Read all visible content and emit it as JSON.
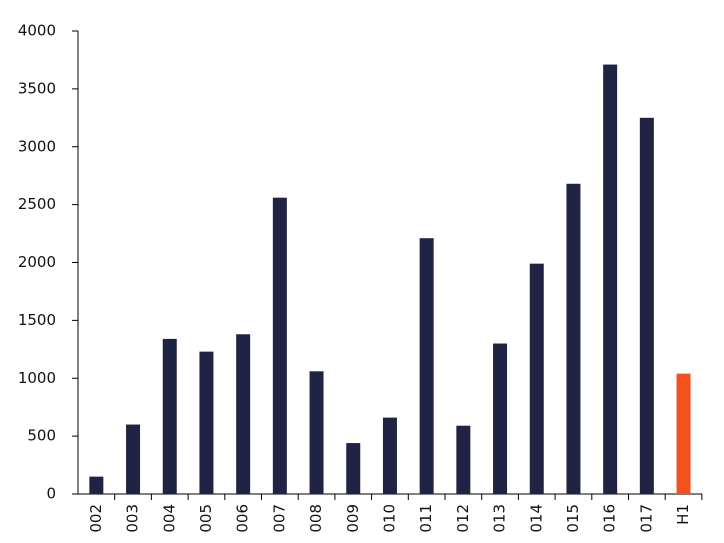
{
  "chart_data": {
    "type": "bar",
    "categories": [
      "002",
      "003",
      "004",
      "005",
      "006",
      "007",
      "008",
      "009",
      "010",
      "011",
      "012",
      "013",
      "014",
      "015",
      "016",
      "017",
      "H1"
    ],
    "values": [
      150,
      600,
      1340,
      1230,
      1380,
      2560,
      1060,
      440,
      660,
      2210,
      590,
      1300,
      1990,
      2680,
      3710,
      3250,
      1040
    ],
    "colors": [
      "#1f2445",
      "#1f2445",
      "#1f2445",
      "#1f2445",
      "#1f2445",
      "#1f2445",
      "#1f2445",
      "#1f2445",
      "#1f2445",
      "#1f2445",
      "#1f2445",
      "#1f2445",
      "#1f2445",
      "#1f2445",
      "#1f2445",
      "#1f2445",
      "#f4511e"
    ],
    "ylim": [
      0,
      4000
    ],
    "yticks": [
      0,
      500,
      1000,
      1500,
      2000,
      2500,
      3000,
      3500,
      4000
    ],
    "grid": false
  }
}
